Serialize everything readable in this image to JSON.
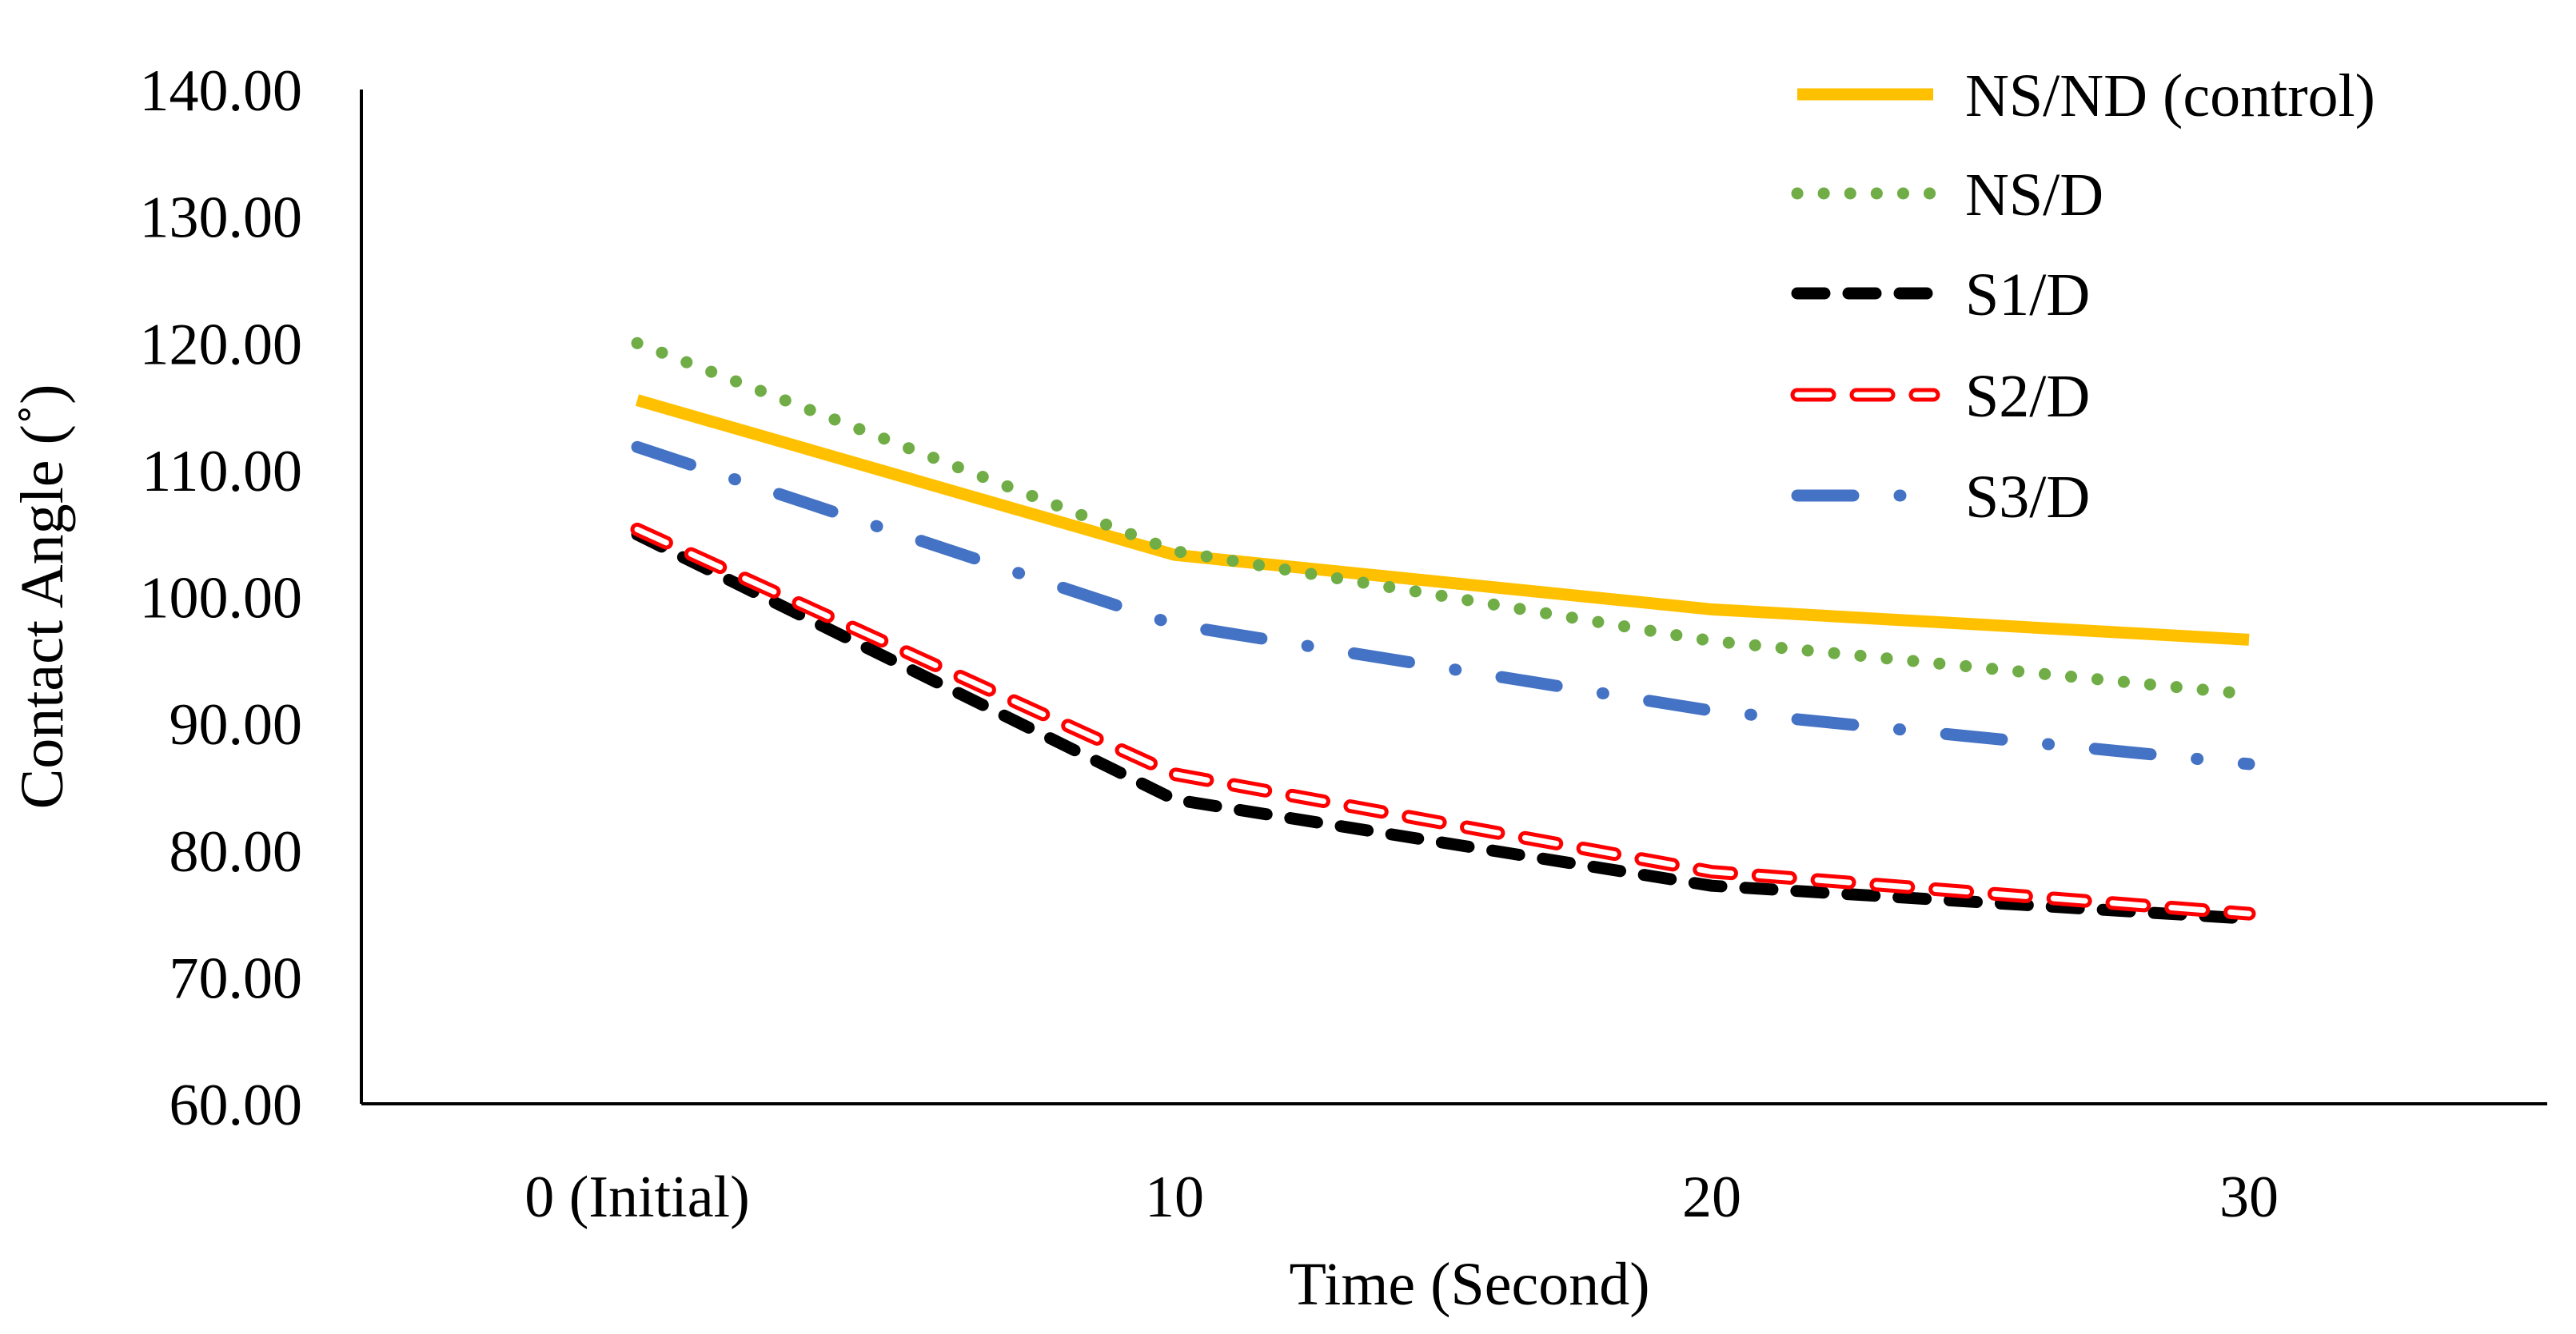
{
  "chart_data": {
    "type": "line",
    "title": "",
    "xlabel": "Time (Second)",
    "ylabel": "Contact Angle (˚)",
    "categories": [
      "0 (Initial)",
      "10",
      "20",
      "30"
    ],
    "ylim": [
      60,
      140
    ],
    "ytick_step": 10,
    "ytick_labels": [
      "60.00",
      "70.00",
      "80.00",
      "90.00",
      "100.00",
      "110.00",
      "120.00",
      "130.00",
      "140.00"
    ],
    "grid": false,
    "legend_position": "top-right",
    "series": [
      {
        "name": "NS/ND (control)",
        "values": [
          115.5,
          103.3,
          99.0,
          96.6
        ],
        "color": "#FFC000",
        "style": "solid"
      },
      {
        "name": "NS/D",
        "values": [
          120.0,
          103.6,
          96.5,
          92.3
        ],
        "color": "#70AD47",
        "style": "dotted"
      },
      {
        "name": "S1/D",
        "values": [
          104.9,
          84.0,
          77.2,
          74.6
        ],
        "color": "#000000",
        "style": "dash"
      },
      {
        "name": "S2/D",
        "values": [
          105.3,
          86.0,
          78.3,
          75.0
        ],
        "color": "#FF0000",
        "style": "hollow-dash"
      },
      {
        "name": "S3/D",
        "values": [
          111.8,
          97.8,
          91.0,
          86.8
        ],
        "color": "#4472C4",
        "style": "dash-dot"
      }
    ]
  }
}
